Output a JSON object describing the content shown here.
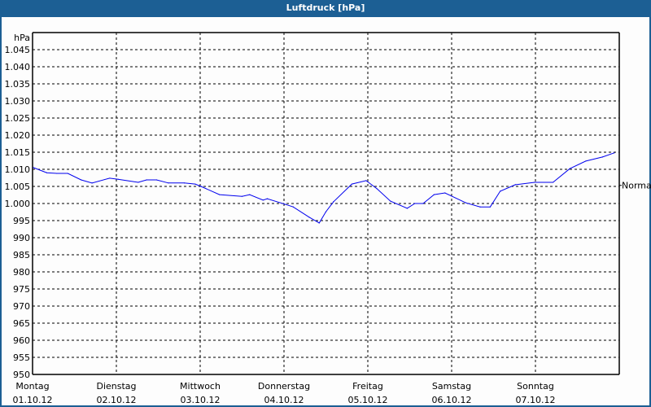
{
  "window": {
    "title": "Luftdruck [hPa]"
  },
  "colors": {
    "line": "#0000ee",
    "titlebar": "#1c5f94",
    "grid": "#000000"
  },
  "chart_data": {
    "type": "line",
    "title": "Luftdruck [hPa]",
    "ylabel": "hPa",
    "xlabel": "",
    "ylim": [
      950,
      1050
    ],
    "xlim": [
      0,
      7
    ],
    "y_ticks": [
      950,
      955,
      960,
      965,
      970,
      975,
      980,
      985,
      990,
      995,
      1000,
      1005,
      1010,
      1015,
      1020,
      1025,
      1030,
      1035,
      1040,
      1045
    ],
    "y_tick_labels": [
      "950",
      "955",
      "960",
      "965",
      "970",
      "975",
      "980",
      "985",
      "990",
      "995",
      "1.000",
      "1.005",
      "1.010",
      "1.015",
      "1.020",
      "1.025",
      "1.030",
      "1.035",
      "1.040",
      "1.045"
    ],
    "x_ticks": [
      {
        "day": "Montag",
        "date": "01.10.12"
      },
      {
        "day": "Dienstag",
        "date": "02.10.12"
      },
      {
        "day": "Mittwoch",
        "date": "03.10.12"
      },
      {
        "day": "Donnerstag",
        "date": "04.10.12"
      },
      {
        "day": "Freitag",
        "date": "05.10.12"
      },
      {
        "day": "Samstag",
        "date": "06.10.12"
      },
      {
        "day": "Sonntag",
        "date": "07.10.12"
      }
    ],
    "grid": true,
    "reference": {
      "label": "Normal",
      "value": 1005.3
    },
    "series": [
      {
        "name": "Luftdruck",
        "x": [
          0.01,
          0.17,
          0.29,
          0.42,
          0.58,
          0.71,
          0.92,
          1.02,
          1.26,
          1.36,
          1.48,
          1.62,
          1.81,
          1.94,
          2.01,
          2.23,
          2.5,
          2.59,
          2.75,
          2.8,
          3.01,
          3.11,
          3.3,
          3.42,
          3.5,
          3.59,
          3.81,
          3.98,
          4.11,
          4.27,
          4.47,
          4.56,
          4.66,
          4.79,
          4.92,
          5.17,
          5.34,
          5.46,
          5.58,
          5.76,
          5.99,
          6.21,
          6.41,
          6.6,
          6.8,
          6.94
        ],
        "y": [
          1010.5,
          1009.0,
          1008.8,
          1008.8,
          1006.9,
          1006.0,
          1007.4,
          1007.1,
          1006.2,
          1006.9,
          1006.9,
          1006.0,
          1006.0,
          1005.7,
          1005.0,
          1002.6,
          1002.1,
          1002.6,
          1001.0,
          1001.4,
          999.8,
          999.0,
          996.0,
          994.3,
          997.6,
          1000.5,
          1005.7,
          1006.7,
          1004.3,
          1000.7,
          998.6,
          1000.0,
          1000.0,
          1002.6,
          1003.1,
          1000.2,
          999.0,
          999.0,
          1003.6,
          1005.5,
          1006.2,
          1006.2,
          1010.2,
          1012.4,
          1013.6,
          1014.8
        ]
      }
    ]
  }
}
